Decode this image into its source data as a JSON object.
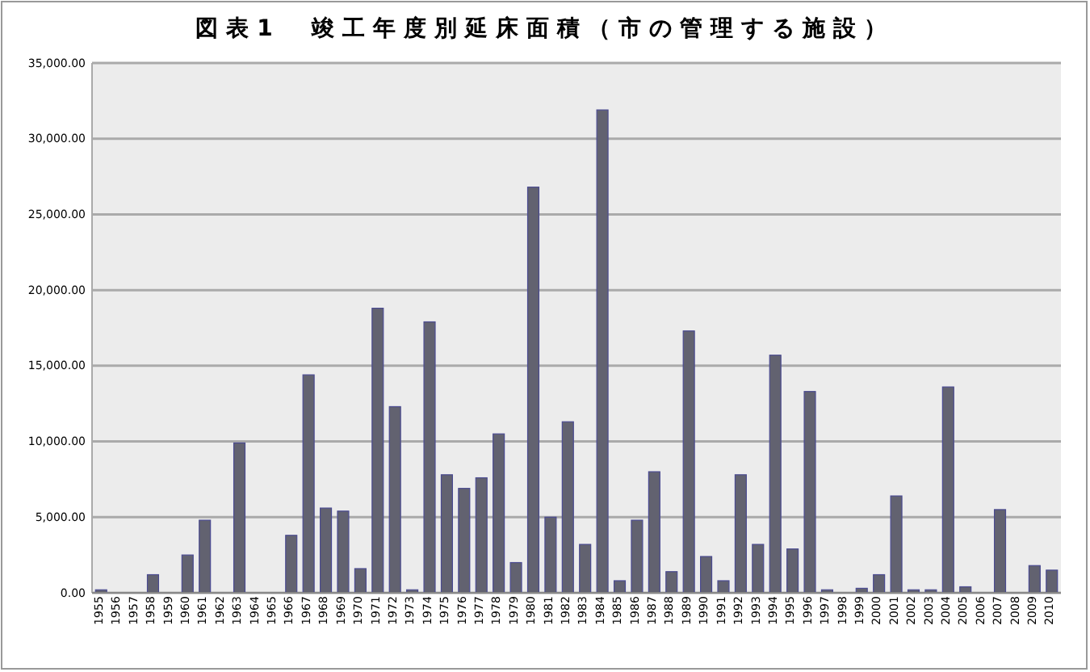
{
  "chart_data": {
    "type": "bar",
    "title": "図表1　竣工年度別延床面積（市の管理する施設）",
    "categories": [
      "1955",
      "1956",
      "1957",
      "1958",
      "1959",
      "1960",
      "1961",
      "1962",
      "1963",
      "1964",
      "1965",
      "1966",
      "1967",
      "1968",
      "1969",
      "1970",
      "1971",
      "1972",
      "1973",
      "1974",
      "1975",
      "1976",
      "1977",
      "1978",
      "1979",
      "1980",
      "1981",
      "1982",
      "1983",
      "1984",
      "1985",
      "1986",
      "1987",
      "1988",
      "1989",
      "1990",
      "1991",
      "1992",
      "1993",
      "1994",
      "1995",
      "1996",
      "1997",
      "1998",
      "1999",
      "2000",
      "2001",
      "2002",
      "2003",
      "2004",
      "2005",
      "2006",
      "2007",
      "2008",
      "2009",
      "2010"
    ],
    "values": [
      200,
      0,
      0,
      1200,
      0,
      2500,
      4800,
      0,
      9900,
      0,
      0,
      3800,
      14400,
      5600,
      5400,
      1600,
      18800,
      12300,
      200,
      17900,
      7800,
      6900,
      7600,
      10500,
      2000,
      26800,
      5000,
      11300,
      3200,
      31900,
      800,
      4800,
      8000,
      1400,
      17300,
      2400,
      800,
      7800,
      3200,
      15700,
      2900,
      13300,
      200,
      0,
      300,
      1200,
      6400,
      200,
      200,
      13600,
      400,
      0,
      5500,
      0,
      1800,
      1500
    ],
    "color": "#626270",
    "ylim": [
      0,
      35000
    ],
    "yticks": [
      {
        "value": 0,
        "label": "0.00"
      },
      {
        "value": 5000,
        "label": "5,000.00"
      },
      {
        "value": 10000,
        "label": "10,000.00"
      },
      {
        "value": 15000,
        "label": "15,000.00"
      },
      {
        "value": 20000,
        "label": "20,000.00"
      },
      {
        "value": 25000,
        "label": "25,000.00"
      },
      {
        "value": 30000,
        "label": "30,000.00"
      },
      {
        "value": 35000,
        "label": "35,000.00"
      }
    ],
    "grid": "y"
  }
}
